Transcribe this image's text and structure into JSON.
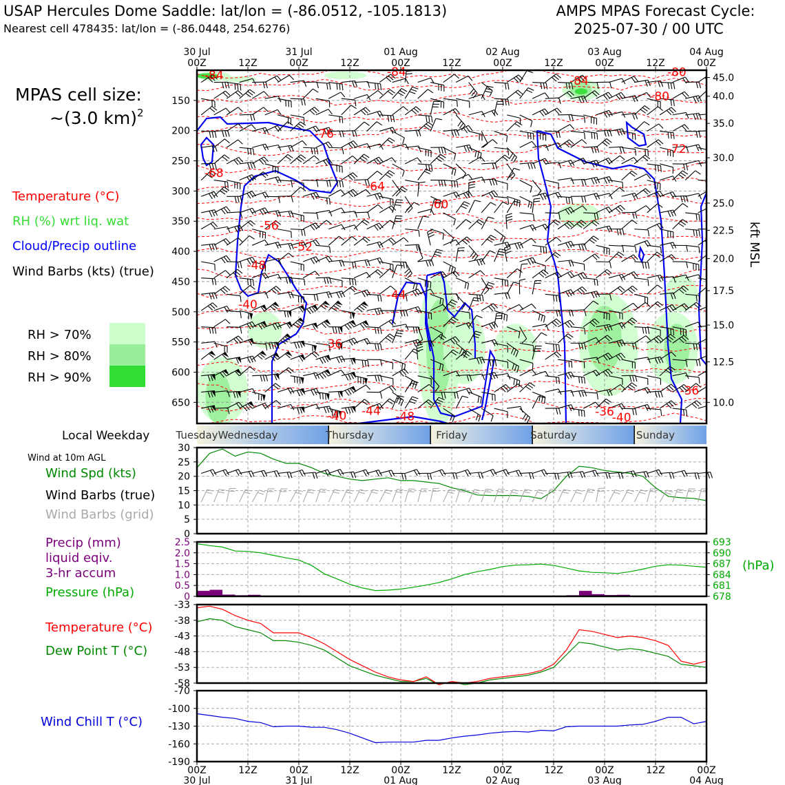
{
  "header": {
    "title_left": "USAP Hercules Dome Saddle: lat/lon = (-86.0512, -105.1813)",
    "subtitle_left": "Nearest cell 478435: lat/lon = (-86.0448, 254.6276)",
    "title_right_1": "AMPS MPAS Forecast Cycle:",
    "title_right_2": "2025-07-30 / 00 UTC"
  },
  "cell_size": {
    "line1": "MPAS cell size:",
    "line2": "~(3.0 km)",
    "sup": "2"
  },
  "legend_main": {
    "temperature": {
      "label": "Temperature (°C)",
      "color": "#ff0000"
    },
    "rh": {
      "label": "RH (%) wrt liq. wat",
      "color": "#33dd33"
    },
    "cloud": {
      "label": "Cloud/Precip outline",
      "color": "#0000ff"
    },
    "wind": {
      "label": "Wind Barbs (kts) (true)",
      "color": "#000000"
    }
  },
  "rh_legend": [
    {
      "label": "RH > 70%",
      "color": "#ccffcc"
    },
    {
      "label": "RH > 80%",
      "color": "#99ee99"
    },
    {
      "label": "RH > 90%",
      "color": "#33dd33"
    }
  ],
  "time_axis": {
    "ticks": [
      {
        "t": 0,
        "top": "30 Jul",
        "bot": "00Z"
      },
      {
        "t": 12,
        "top": "",
        "bot": "12Z"
      },
      {
        "t": 24,
        "top": "31 Jul",
        "bot": "00Z"
      },
      {
        "t": 36,
        "top": "",
        "bot": "12Z"
      },
      {
        "t": 48,
        "top": "01 Aug",
        "bot": "00Z"
      },
      {
        "t": 60,
        "top": "",
        "bot": "12Z"
      },
      {
        "t": 72,
        "top": "02 Aug",
        "bot": "00Z"
      },
      {
        "t": 84,
        "top": "",
        "bot": "12Z"
      },
      {
        "t": 96,
        "top": "03 Aug",
        "bot": "00Z"
      },
      {
        "t": 108,
        "top": "",
        "bot": "12Z"
      },
      {
        "t": 120,
        "top": "04 Aug",
        "bot": "00Z"
      }
    ],
    "range_hours": [
      0,
      120
    ]
  },
  "weekday": {
    "label": "Local Weekday",
    "days": [
      {
        "name": "Tuesday",
        "center": 0
      },
      {
        "name": "Wednesday",
        "center": 12
      },
      {
        "name": "Thursday",
        "center": 36
      },
      {
        "name": "Friday",
        "center": 60
      },
      {
        "name": "Saturday",
        "center": 84
      },
      {
        "name": "Sunday",
        "center": 108
      }
    ],
    "dividers": [
      31,
      55,
      79,
      103
    ]
  },
  "profile": {
    "left_axis_label_ticks": [
      150,
      200,
      250,
      300,
      350,
      400,
      450,
      500,
      550,
      600,
      650
    ],
    "pressure_range": [
      685,
      100
    ],
    "right_axis_ticks": [
      {
        "label": "45.0",
        "p": 112
      },
      {
        "label": "40.0",
        "p": 143
      },
      {
        "label": "35.0",
        "p": 188
      },
      {
        "label": "30.0",
        "p": 245
      },
      {
        "label": "25.0",
        "p": 320
      },
      {
        "label": "22.5",
        "p": 365
      },
      {
        "label": "20.0",
        "p": 412
      },
      {
        "label": "17.5",
        "p": 465
      },
      {
        "label": "15.0",
        "p": 522
      },
      {
        "label": "12.5",
        "p": 583
      },
      {
        "label": "10.0",
        "p": 650
      }
    ],
    "right_axis_title": "kft MSL",
    "temp_labels": [
      {
        "t": 4,
        "p": 108,
        "text": "-84"
      },
      {
        "t": 47,
        "p": 102,
        "text": "-84"
      },
      {
        "t": 90,
        "p": 117,
        "text": "-84"
      },
      {
        "t": 109,
        "p": 143,
        "text": "-80"
      },
      {
        "t": 113,
        "p": 103,
        "text": "-80"
      },
      {
        "t": 30,
        "p": 205,
        "text": "-76"
      },
      {
        "t": 113,
        "p": 230,
        "text": "-72"
      },
      {
        "t": 4,
        "p": 270,
        "text": "-68"
      },
      {
        "t": 42,
        "p": 292,
        "text": "-64"
      },
      {
        "t": 57,
        "p": 322,
        "text": "-60"
      },
      {
        "t": 17,
        "p": 357,
        "text": "-56"
      },
      {
        "t": 25,
        "p": 392,
        "text": "-52"
      },
      {
        "t": 14,
        "p": 423,
        "text": "-48"
      },
      {
        "t": 47,
        "p": 472,
        "text": "-44"
      },
      {
        "t": 12,
        "p": 488,
        "text": "-40"
      },
      {
        "t": 32,
        "p": 553,
        "text": "-36"
      },
      {
        "t": 116,
        "p": 630,
        "text": "-36"
      },
      {
        "t": 96,
        "p": 665,
        "text": "-36"
      },
      {
        "t": 33,
        "p": 672,
        "text": "-40"
      },
      {
        "t": 100,
        "p": 675,
        "text": "-40"
      },
      {
        "t": 41,
        "p": 664,
        "text": "-44"
      },
      {
        "t": 49,
        "p": 673,
        "text": "-48"
      }
    ]
  },
  "wind_panel": {
    "title": "Wind at 10m AGL",
    "labels": [
      {
        "text": "Wind Spd (kts)",
        "color": "#008800"
      },
      {
        "text": "Wind Barbs (true)",
        "color": "#000000"
      },
      {
        "text": "Wind Barbs (grid)",
        "color": "#aaaaaa"
      }
    ],
    "y_ticks": [
      0,
      5,
      10,
      15,
      20,
      25,
      30
    ],
    "ylim": [
      0,
      30
    ]
  },
  "precip_panel": {
    "labels": [
      {
        "text": "Precip (mm)",
        "color": "#7a007a"
      },
      {
        "text": "liquid eqiv.",
        "color": "#7a007a"
      },
      {
        "text": "3-hr accum",
        "color": "#7a007a"
      },
      {
        "text": "Pressure (hPa)",
        "color": "#00aa00"
      }
    ],
    "left_ticks": [
      "0",
      "0.5",
      "1.0",
      "1.5",
      "2.0",
      "2.5"
    ],
    "left_range": [
      0,
      2.5
    ],
    "right_ticks": [
      "678",
      "681",
      "684",
      "687",
      "690",
      "693"
    ],
    "right_range": [
      678,
      693
    ],
    "right_title": "(hPa)"
  },
  "temp_panel": {
    "labels": [
      {
        "text": "Temperature (°C)",
        "color": "#ff0000"
      },
      {
        "text": "Dew Point T (°C)",
        "color": "#008800"
      }
    ],
    "y_ticks": [
      -58,
      -53,
      -48,
      -43,
      -38,
      -33
    ],
    "ylim": [
      -58,
      -33
    ]
  },
  "chill_panel": {
    "label": {
      "text": "Wind Chill T (°C)",
      "color": "#0000dd"
    },
    "y_ticks": [
      -190,
      -160,
      -130,
      -100,
      -70
    ],
    "ylim": [
      -190,
      -70
    ]
  },
  "chart_data": [
    {
      "type": "line",
      "x": [
        0,
        3,
        6,
        9,
        12,
        15,
        18,
        21,
        24,
        27,
        30,
        33,
        36,
        39,
        42,
        45,
        48,
        51,
        54,
        57,
        60,
        63,
        66,
        69,
        72,
        75,
        78,
        81,
        84,
        87,
        90,
        93,
        96,
        99,
        102,
        105,
        108,
        111,
        114,
        117,
        120
      ],
      "series": [
        {
          "name": "Wind Spd (kts)",
          "values": [
            23,
            28,
            29.5,
            27,
            28.5,
            28,
            26,
            24.5,
            24.5,
            23,
            21,
            20,
            19,
            18.5,
            19,
            19.5,
            18.5,
            18.5,
            18,
            17.5,
            16,
            15,
            13.5,
            13.3,
            13.3,
            13.3,
            13,
            12.2,
            15,
            20,
            23.5,
            23,
            22,
            21.5,
            21,
            20,
            16,
            13,
            12.5,
            12.3,
            11.5
          ]
        }
      ],
      "xlabel": "",
      "ylabel": "",
      "ylim": [
        0,
        30
      ]
    },
    {
      "type": "bar",
      "x": [
        1.5,
        4.5,
        7.5,
        10.5,
        13.5,
        88.5,
        91.5,
        94.5,
        97.5,
        100.5
      ],
      "series": [
        {
          "name": "Precip (mm)",
          "values": [
            0.25,
            0.3,
            0.08,
            0.05,
            0.07,
            0.05,
            0.25,
            0.1,
            0.06,
            0.07
          ]
        }
      ],
      "ylim": [
        0,
        2.5
      ]
    },
    {
      "type": "line",
      "x": [
        0,
        3,
        6,
        9,
        12,
        15,
        18,
        21,
        24,
        27,
        30,
        33,
        36,
        39,
        42,
        45,
        48,
        51,
        54,
        57,
        60,
        63,
        66,
        69,
        72,
        75,
        78,
        81,
        84,
        87,
        90,
        93,
        96,
        99,
        102,
        105,
        108,
        111,
        114,
        117,
        120
      ],
      "series": [
        {
          "name": "Pressure (hPa)",
          "values": [
            692.5,
            692,
            691.6,
            690.5,
            690.4,
            690,
            689.3,
            688.6,
            688,
            686.5,
            684.2,
            682.8,
            681.3,
            680.3,
            679.6,
            679.7,
            680,
            680.5,
            681.1,
            681.8,
            682.8,
            684,
            684.8,
            685.4,
            686.2,
            686.6,
            686.7,
            686.9,
            686.5,
            685.8,
            685,
            684.6,
            684.5,
            684.3,
            684.8,
            685.5,
            686.3,
            686.7,
            686.6,
            686.3,
            686
          ]
        }
      ],
      "ylim": [
        678,
        693
      ]
    },
    {
      "type": "line",
      "x": [
        0,
        3,
        6,
        9,
        12,
        15,
        18,
        21,
        24,
        27,
        30,
        33,
        36,
        39,
        42,
        45,
        48,
        51,
        54,
        57,
        60,
        63,
        66,
        69,
        72,
        75,
        78,
        81,
        84,
        87,
        90,
        93,
        96,
        99,
        102,
        105,
        108,
        111,
        114,
        117,
        120
      ],
      "series": [
        {
          "name": "Temperature (°C)",
          "values": [
            -34,
            -33.5,
            -34.5,
            -36.5,
            -38,
            -39,
            -42,
            -42,
            -42,
            -43.5,
            -45.5,
            -48,
            -50.5,
            -52.5,
            -54.5,
            -56,
            -57,
            -57.5,
            -56,
            -58.5,
            -57.5,
            -58,
            -57.5,
            -56.5,
            -56,
            -55.5,
            -55,
            -54,
            -52,
            -47.5,
            -41,
            -41.5,
            -42.5,
            -43.5,
            -43,
            -43.5,
            -44.5,
            -46,
            -51,
            -52,
            -51
          ]
        },
        {
          "name": "Dew Point T (°C)",
          "values": [
            -38.5,
            -37.5,
            -38,
            -40,
            -41,
            -42,
            -44.5,
            -44.5,
            -45,
            -46,
            -47.5,
            -50,
            -52.5,
            -54,
            -55.5,
            -56.5,
            -57.5,
            -57.5,
            -56.5,
            -58.5,
            -57.5,
            -58.5,
            -58,
            -57,
            -56.5,
            -56,
            -55.5,
            -54.5,
            -53,
            -49,
            -45,
            -45.5,
            -46.5,
            -47.5,
            -47,
            -47.5,
            -48.5,
            -49.5,
            -52,
            -52.5,
            -53
          ]
        }
      ],
      "ylim": [
        -58,
        -33
      ]
    },
    {
      "type": "line",
      "x": [
        0,
        3,
        6,
        9,
        12,
        15,
        18,
        21,
        24,
        27,
        30,
        33,
        36,
        39,
        42,
        45,
        48,
        51,
        54,
        57,
        60,
        63,
        66,
        69,
        72,
        75,
        78,
        81,
        84,
        87,
        90,
        93,
        96,
        99,
        102,
        105,
        108,
        111,
        114,
        117,
        120
      ],
      "series": [
        {
          "name": "Wind Chill T (°C)",
          "values": [
            -109,
            -112,
            -115,
            -117,
            -122,
            -124,
            -131,
            -130,
            -130,
            -132,
            -132,
            -136,
            -142,
            -150,
            -158,
            -157,
            -157,
            -157,
            -154,
            -154,
            -150,
            -147,
            -145,
            -142,
            -140,
            -139,
            -140,
            -137,
            -138,
            -131,
            -130,
            -130,
            -130,
            -130,
            -128,
            -127,
            -122,
            -115,
            -115,
            -126,
            -122
          ]
        }
      ],
      "ylim": [
        -190,
        -70
      ]
    }
  ]
}
